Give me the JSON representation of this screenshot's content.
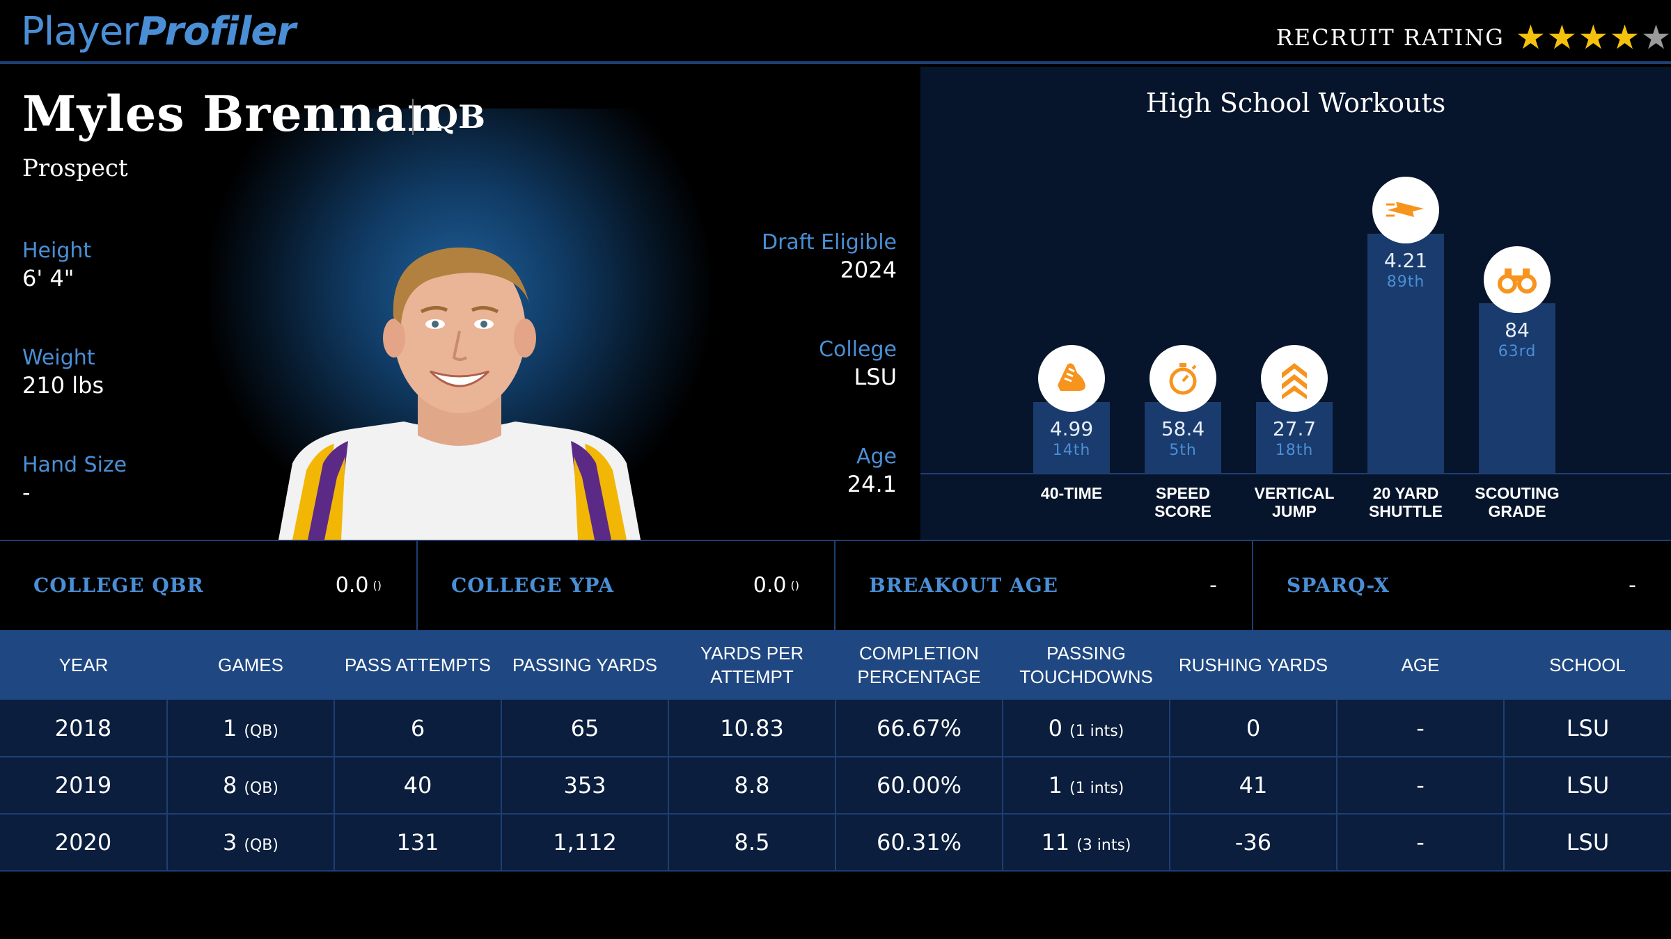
{
  "header": {
    "logo_part1": "Player",
    "logo_part2": "Profiler",
    "recruit_label": "RECRUIT RATING",
    "recruit_stars_filled": 4,
    "recruit_stars_total": 5
  },
  "player": {
    "name": "Myles Brennan",
    "position": "QB",
    "status": "Prospect",
    "height_label": "Height",
    "height": "6' 4\"",
    "weight_label": "Weight",
    "weight": "210 lbs",
    "hand_label": "Hand Size",
    "hand": "-",
    "draft_label": "Draft Eligible",
    "draft": "2024",
    "college_label": "College",
    "college": "LSU",
    "age_label": "Age",
    "age": "24.1"
  },
  "workouts": {
    "title": "High School Workouts",
    "items": [
      {
        "value": "4.99",
        "percentile": "14th",
        "label_1": "40-TIME",
        "label_2": "",
        "icon": "shoe-icon",
        "pct_num": 14
      },
      {
        "value": "58.4",
        "percentile": "5th",
        "label_1": "SPEED",
        "label_2": "SCORE",
        "icon": "stopwatch-icon",
        "pct_num": 5
      },
      {
        "value": "27.7",
        "percentile": "18th",
        "label_1": "VERTICAL",
        "label_2": "JUMP",
        "icon": "chevrons-up-icon",
        "pct_num": 18
      },
      {
        "value": "4.21",
        "percentile": "89th",
        "label_1": "20 YARD",
        "label_2": "SHUTTLE",
        "icon": "lightning-icon",
        "pct_num": 89
      },
      {
        "value": "84",
        "percentile": "63rd",
        "label_1": "SCOUTING",
        "label_2": "GRADE",
        "icon": "binoculars-icon",
        "pct_num": 63
      }
    ]
  },
  "metrics": [
    {
      "label": "COLLEGE QBR",
      "value": "0.0",
      "rank": "()"
    },
    {
      "label": "COLLEGE YPA",
      "value": "0.0",
      "rank": "()"
    },
    {
      "label": "BREAKOUT AGE",
      "value": "-",
      "rank": ""
    },
    {
      "label": "SPARQ-X",
      "value": "-",
      "rank": ""
    }
  ],
  "table": {
    "headers": [
      [
        "YEAR",
        ""
      ],
      [
        "GAMES",
        ""
      ],
      [
        "PASS ATTEMPTS",
        ""
      ],
      [
        "PASSING YARDS",
        ""
      ],
      [
        "YARDS PER ATTEMPT",
        ""
      ],
      [
        "COMPLETION",
        "PERCENTAGE"
      ],
      [
        "PASSING",
        "TOUCHDOWNS"
      ],
      [
        "RUSHING YARDS",
        ""
      ],
      [
        "AGE",
        ""
      ],
      [
        "SCHOOL",
        ""
      ]
    ],
    "rows": [
      {
        "year": "2018",
        "games": "1",
        "games_note": "(QB)",
        "attempts": "6",
        "yards": "65",
        "ypa": "10.83",
        "comp": "66.67%",
        "td": "0",
        "td_note": "(1 ints)",
        "rush": "0",
        "age": "-",
        "school": "LSU"
      },
      {
        "year": "2019",
        "games": "8",
        "games_note": "(QB)",
        "attempts": "40",
        "yards": "353",
        "ypa": "8.8",
        "comp": "60.00%",
        "td": "1",
        "td_note": "(1 ints)",
        "rush": "41",
        "age": "-",
        "school": "LSU"
      },
      {
        "year": "2020",
        "games": "3",
        "games_note": "(QB)",
        "attempts": "131",
        "yards": "1,112",
        "ypa": "8.5",
        "comp": "60.31%",
        "td": "11",
        "td_note": "(3 ints)",
        "rush": "-36",
        "age": "-",
        "school": "LSU"
      }
    ]
  },
  "colors": {
    "accent": "#4a8fd6",
    "icon_orange": "#f7941d",
    "star": "#f4c10f",
    "panel": "#06152b",
    "table_header": "#1f4782"
  }
}
